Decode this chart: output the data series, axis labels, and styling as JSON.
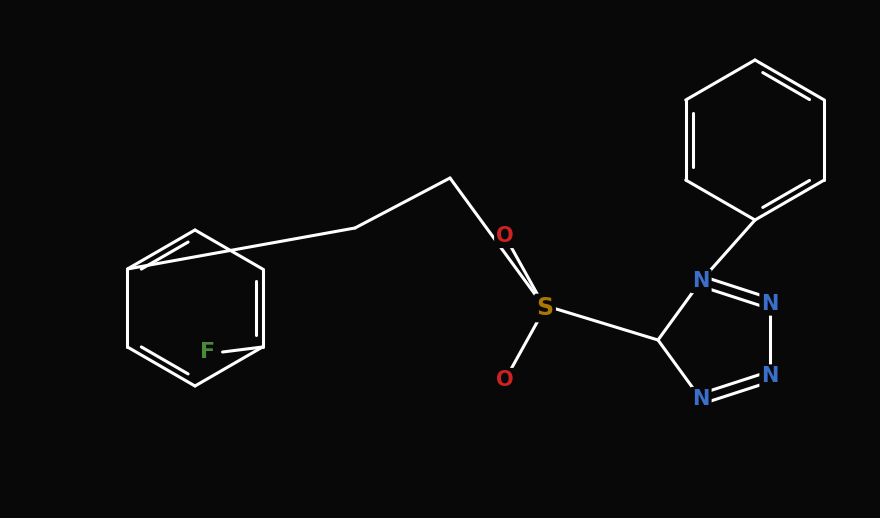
{
  "background_color": "#080808",
  "bond_color": "#ffffff",
  "atom_colors": {
    "F": "#4a8a3a",
    "N": "#3a6fcc",
    "O": "#cc2222",
    "S": "#aa7700",
    "C": "#ffffff"
  },
  "bond_width": 2.2,
  "fig_width": 8.8,
  "fig_height": 5.18,
  "dpi": 100
}
